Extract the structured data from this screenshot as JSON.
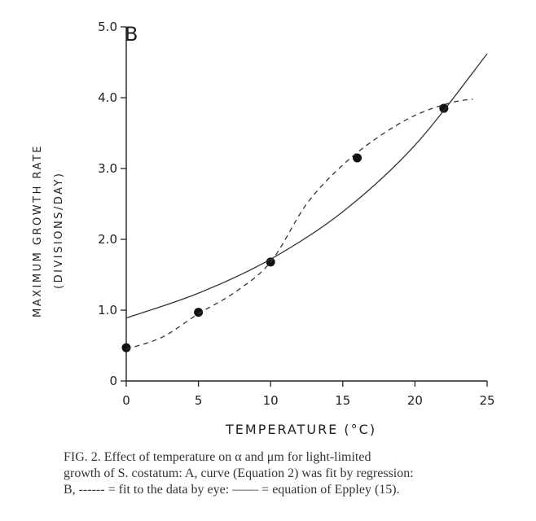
{
  "chart_data": {
    "type": "line",
    "panel_label": "B",
    "xlabel": "TEMPERATURE (°C)",
    "ylabel_line1": "MAXIMUM GROWTH RATE",
    "ylabel_line2": "(DIVISIONS/DAY)",
    "xlim": [
      0,
      25
    ],
    "ylim": [
      0,
      5.0
    ],
    "x_ticks": [
      0,
      5,
      10,
      15,
      20,
      25
    ],
    "x_tick_labels": [
      "0",
      "5",
      "10",
      "15",
      "20",
      "25"
    ],
    "y_ticks": [
      0,
      1.0,
      2.0,
      3.0,
      4.0,
      5.0
    ],
    "y_tick_labels": [
      "0",
      "1.0",
      "2.0",
      "3.0",
      "4.0",
      "5.0"
    ],
    "grid": false,
    "series": [
      {
        "style": "points",
        "color": "#111111",
        "x": [
          0,
          5,
          10,
          16,
          22
        ],
        "y": [
          0.47,
          0.97,
          1.68,
          3.15,
          3.85
        ]
      },
      {
        "style": "dashed",
        "color": "#333333",
        "x": [
          0,
          2.5,
          5,
          7.5,
          10,
          12.5,
          15,
          17.5,
          20,
          22.5,
          24
        ],
        "y": [
          0.45,
          0.62,
          0.95,
          1.25,
          1.68,
          2.5,
          3.05,
          3.45,
          3.75,
          3.93,
          3.98
        ]
      },
      {
        "style": "solid",
        "color": "#333333",
        "x": [
          0,
          5,
          10,
          15,
          20,
          25
        ],
        "y": [
          0.89,
          1.24,
          1.72,
          2.39,
          3.33,
          4.62
        ]
      }
    ]
  },
  "caption": {
    "line1": "FIG. 2.   Effect of temperature on α and μm for light-limited",
    "line2": "growth of S. costatum: A, curve (Equation 2) was fit by regression:",
    "line3": "B, ------ = fit to the data by eye: —— = equation of Eppley (15)."
  }
}
